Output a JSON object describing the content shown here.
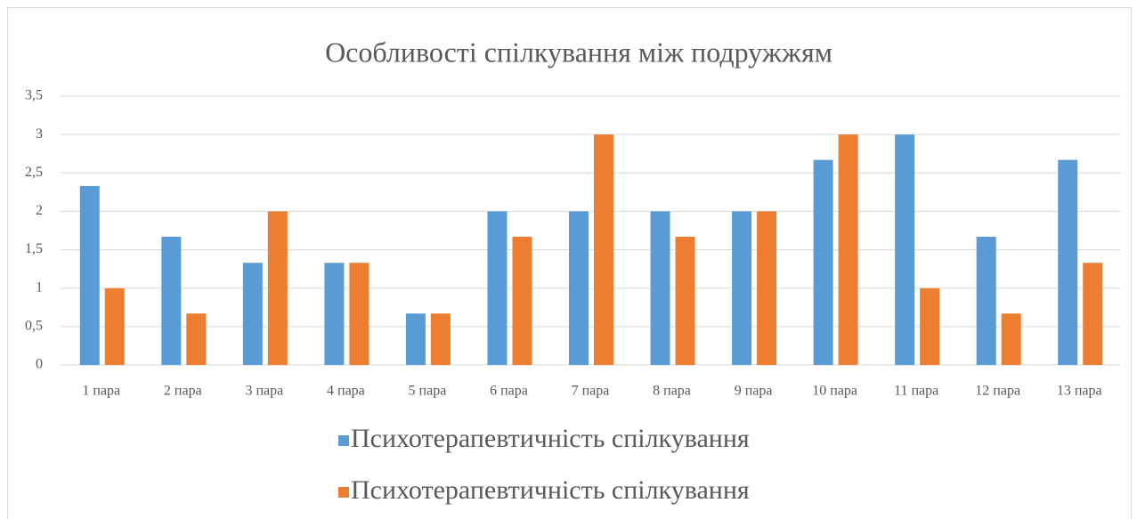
{
  "chart_data": {
    "type": "bar",
    "title": "Особливості спілкування між подружжям",
    "categories": [
      "1 пара",
      "2 пара",
      "3 пара",
      "4 пара",
      "5 пара",
      "6 пара",
      "7 пара",
      "8 пара",
      "9 пара",
      "10 пара",
      "11 пара",
      "12 пара",
      "13 пара"
    ],
    "series": [
      {
        "name": "Психотерапевтичність спілкування",
        "color": "#5b9bd5",
        "values": [
          2.33,
          1.67,
          1.33,
          1.33,
          0.67,
          2,
          2,
          2,
          2,
          2.67,
          3,
          1.67,
          2.67
        ]
      },
      {
        "name": "Психотерапевтичність спілкування",
        "color": "#ed7d31",
        "values": [
          1,
          0.67,
          2,
          1.33,
          0.67,
          1.67,
          3,
          1.67,
          2,
          3,
          1,
          0.67,
          1.33
        ]
      }
    ],
    "ylim": [
      0,
      3.5
    ],
    "yticks": [
      0,
      {
        "value": 0.5,
        "label": "0,5"
      },
      1,
      {
        "value": 1.5,
        "label": "1,5"
      },
      2,
      {
        "value": 2.5,
        "label": "2,5"
      },
      3,
      {
        "value": 3.5,
        "label": "3,5"
      }
    ],
    "grid": true,
    "legend": "bottom"
  }
}
